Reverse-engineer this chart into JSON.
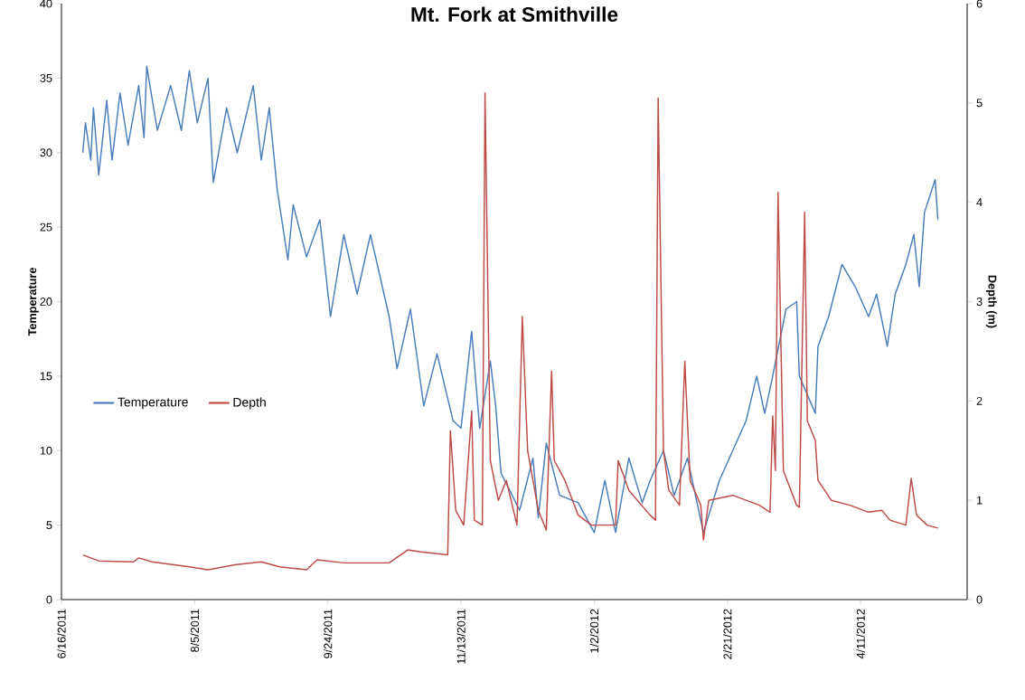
{
  "chart_data": {
    "type": "line",
    "title": "Mt. Fork at Smithville",
    "ylabel": "Temperature",
    "y2label": "Depth (m)",
    "xlim": [
      "2011-06-16",
      "2012-05-21"
    ],
    "xticks": [
      {
        "value": "2011-06-16",
        "label": "6/16/2011"
      },
      {
        "value": "2011-08-05",
        "label": "8/5/2011"
      },
      {
        "value": "2011-09-24",
        "label": "9/24/2011"
      },
      {
        "value": "2011-11-13",
        "label": "11/13/2011"
      },
      {
        "value": "2012-01-02",
        "label": "1/2/2012"
      },
      {
        "value": "2012-02-21",
        "label": "2/21/2012"
      },
      {
        "value": "2012-04-11",
        "label": "4/11/2012"
      }
    ],
    "ylim": [
      0,
      40
    ],
    "yticks": [
      0,
      5,
      10,
      15,
      20,
      25,
      30,
      35,
      40
    ],
    "y2lim": [
      0,
      6
    ],
    "y2ticks": [
      0,
      1,
      2,
      3,
      4,
      5,
      6
    ],
    "legend": "left",
    "grid": false,
    "marker": "none",
    "line_style": "solid",
    "series": [
      {
        "name": "Temperature",
        "color": "#4a7ebb",
        "x": [
          "2011-06-24",
          "2011-06-25",
          "2011-06-27",
          "2011-06-28",
          "2011-06-30",
          "2011-07-03",
          "2011-07-05",
          "2011-07-08",
          "2011-07-11",
          "2011-07-15",
          "2011-07-17",
          "2011-07-18",
          "2011-07-22",
          "2011-07-27",
          "2011-07-31",
          "2011-08-03",
          "2011-08-06",
          "2011-08-10",
          "2011-08-12",
          "2011-08-17",
          "2011-08-21",
          "2011-08-27",
          "2011-08-30",
          "2011-09-02",
          "2011-09-05",
          "2011-09-09",
          "2011-09-11",
          "2011-09-16",
          "2011-09-21",
          "2011-09-25",
          "2011-09-30",
          "2011-10-05",
          "2011-10-10",
          "2011-10-17",
          "2011-10-20",
          "2011-10-25",
          "2011-10-30",
          "2011-11-04",
          "2011-11-10",
          "2011-11-13",
          "2011-11-17",
          "2011-11-20",
          "2011-11-24",
          "2011-11-26",
          "2011-11-28",
          "2011-12-05",
          "2011-12-10",
          "2011-12-12",
          "2011-12-15",
          "2011-12-20",
          "2011-12-27",
          "2012-01-02",
          "2012-01-06",
          "2012-01-10",
          "2012-01-15",
          "2012-01-20",
          "2012-01-23",
          "2012-01-28",
          "2012-02-01",
          "2012-02-06",
          "2012-02-12",
          "2012-02-18",
          "2012-02-23",
          "2012-02-28",
          "2012-03-03",
          "2012-03-06",
          "2012-03-09",
          "2012-03-14",
          "2012-03-18",
          "2012-03-19",
          "2012-03-25",
          "2012-03-26",
          "2012-03-30",
          "2012-04-04",
          "2012-04-09",
          "2012-04-14",
          "2012-04-17",
          "2012-04-21",
          "2012-04-24",
          "2012-04-28",
          "2012-05-01",
          "2012-05-03",
          "2012-05-05",
          "2012-05-09",
          "2012-05-10"
        ],
        "values": [
          30,
          32,
          29.5,
          33,
          28.5,
          33.5,
          29.5,
          34,
          30.5,
          34.5,
          31,
          35.8,
          31.5,
          34.5,
          31.5,
          35.5,
          32,
          35,
          28,
          33,
          30,
          34.5,
          29.5,
          33,
          27.5,
          22.8,
          26.5,
          23,
          25.5,
          19,
          24.5,
          20.5,
          24.5,
          19,
          15.5,
          19.5,
          13,
          16.5,
          12,
          11.5,
          18,
          11.5,
          16,
          13,
          8.5,
          6,
          9.5,
          5.5,
          10.5,
          7,
          6.5,
          4.5,
          8,
          4.5,
          9.5,
          6.5,
          8,
          10,
          7,
          9.5,
          4.5,
          8,
          10,
          12,
          15,
          12.5,
          15,
          19.5,
          20,
          15,
          12.5,
          17,
          19,
          22.5,
          21,
          19,
          20.5,
          17,
          20.5,
          22.5,
          24.5,
          21,
          26,
          28.2,
          25.5
        ]
      },
      {
        "name": "Depth",
        "color": "#be4b48",
        "axis": "y2",
        "x": [
          "2011-06-24",
          "2011-06-30",
          "2011-07-13",
          "2011-07-15",
          "2011-07-20",
          "2011-08-03",
          "2011-08-10",
          "2011-08-20",
          "2011-08-30",
          "2011-09-06",
          "2011-09-16",
          "2011-09-20",
          "2011-09-30",
          "2011-10-17",
          "2011-10-24",
          "2011-10-29",
          "2011-11-08",
          "2011-11-09",
          "2011-11-11",
          "2011-11-14",
          "2011-11-17",
          "2011-11-18",
          "2011-11-21",
          "2011-11-22",
          "2011-11-24",
          "2011-11-27",
          "2011-11-30",
          "2011-12-04",
          "2011-12-06",
          "2011-12-08",
          "2011-12-12",
          "2011-12-15",
          "2011-12-17",
          "2011-12-18",
          "2011-12-22",
          "2011-12-27",
          "2012-01-01",
          "2012-01-10",
          "2012-01-11",
          "2012-01-15",
          "2012-01-23",
          "2012-01-25",
          "2012-01-26",
          "2012-01-28",
          "2012-01-30",
          "2012-02-03",
          "2012-02-05",
          "2012-02-07",
          "2012-02-11",
          "2012-02-12",
          "2012-02-14",
          "2012-02-23",
          "2012-03-04",
          "2012-03-08",
          "2012-03-09",
          "2012-03-10",
          "2012-03-11",
          "2012-03-13",
          "2012-03-18",
          "2012-03-19",
          "2012-03-21",
          "2012-03-22",
          "2012-03-25",
          "2012-03-26",
          "2012-03-31",
          "2012-04-07",
          "2012-04-14",
          "2012-04-19",
          "2012-04-22",
          "2012-04-28",
          "2012-04-30",
          "2012-05-02",
          "2012-05-06",
          "2012-05-10"
        ],
        "values": [
          0.45,
          0.39,
          0.38,
          0.42,
          0.38,
          0.33,
          0.3,
          0.35,
          0.38,
          0.33,
          0.3,
          0.4,
          0.37,
          0.37,
          0.5,
          0.48,
          0.45,
          1.7,
          0.9,
          0.75,
          1.9,
          0.8,
          0.75,
          5.1,
          1.4,
          1.0,
          1.2,
          0.75,
          2.85,
          1.5,
          0.9,
          0.7,
          2.3,
          1.4,
          1.2,
          0.85,
          0.75,
          0.75,
          1.4,
          1.1,
          0.85,
          0.8,
          5.05,
          1.5,
          1.1,
          0.95,
          2.4,
          1.2,
          0.95,
          0.6,
          1.0,
          1.05,
          0.95,
          0.88,
          1.85,
          1.3,
          4.1,
          1.3,
          0.95,
          0.93,
          3.9,
          1.8,
          1.6,
          1.2,
          1.0,
          0.95,
          0.88,
          0.9,
          0.8,
          0.75,
          1.22,
          0.85,
          0.75,
          0.72
        ]
      }
    ]
  }
}
